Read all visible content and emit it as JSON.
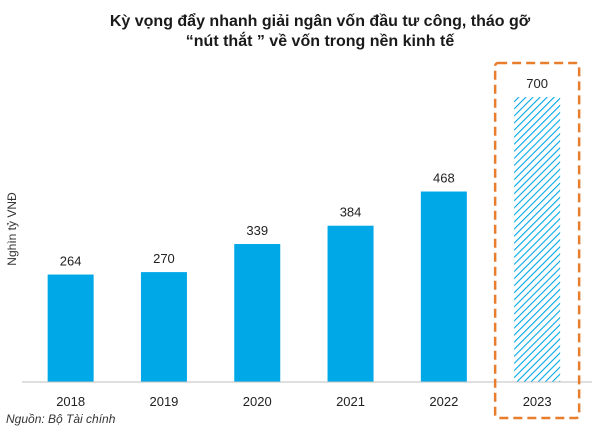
{
  "chart_data": {
    "type": "bar",
    "title_lines": [
      "Kỳ vọng đẩy nhanh giải ngân vốn đầu tư công, tháo gỡ",
      "“nút thắt ” về vốn trong nền kinh tế"
    ],
    "xlabel": "",
    "ylabel": "Nghìn tỷ VNĐ",
    "categories": [
      "2018",
      "2019",
      "2020",
      "2021",
      "2022",
      "2023"
    ],
    "values": [
      264,
      270,
      339,
      384,
      468,
      700
    ],
    "data_labels": [
      "264",
      "270",
      "339",
      "384",
      "468",
      "700"
    ],
    "highlighted_category": "2023",
    "ylim": [
      0,
      750
    ],
    "grid": false,
    "legend": "none"
  },
  "source": "Nguồn: Bộ Tài chính",
  "colors": {
    "bar": "#00a8e8",
    "highlight_hatch": "#00a8e8",
    "highlight_border": "#e87d2e",
    "axis": "#bfbfbf"
  }
}
